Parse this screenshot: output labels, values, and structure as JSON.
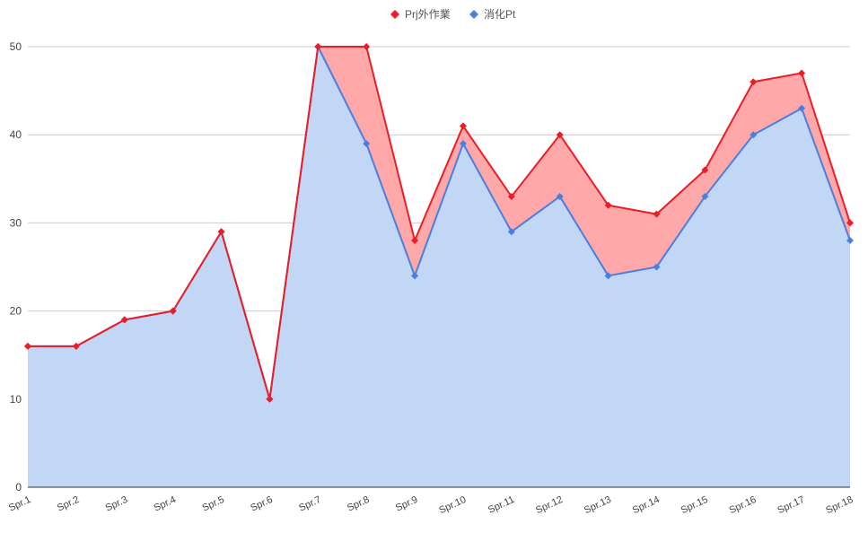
{
  "chart_data": {
    "type": "area",
    "categories": [
      "Spr.1",
      "Spr.2",
      "Spr.3",
      "Spr.4",
      "Spr.5",
      "Spr.6",
      "Spr.7",
      "Spr.8",
      "Spr.9",
      "Spr.10",
      "Spr.11",
      "Spr.12",
      "Spr.13",
      "Spr.14",
      "Spr.15",
      "Spr.16",
      "Spr.17",
      "Spr.18"
    ],
    "series": [
      {
        "name": "Prj外作業",
        "color": "#ee1c25",
        "fill": "#ffa8aa",
        "values": [
          16,
          16,
          19,
          20,
          29,
          10,
          50,
          50,
          28,
          41,
          33,
          40,
          32,
          31,
          36,
          46,
          47,
          30
        ]
      },
      {
        "name": "消化Pt",
        "color": "#4a7fe0",
        "fill": "#c2d6f5",
        "values": [
          16,
          16,
          19,
          20,
          29,
          10,
          50,
          39,
          24,
          39,
          29,
          33,
          24,
          25,
          33,
          40,
          43,
          28
        ]
      }
    ],
    "ylim": [
      0,
      50
    ],
    "yticks": [
      0,
      10,
      20,
      30,
      40,
      50
    ],
    "grid": true,
    "legend_position": "top-center",
    "title": "",
    "xlabel": "",
    "ylabel": ""
  }
}
